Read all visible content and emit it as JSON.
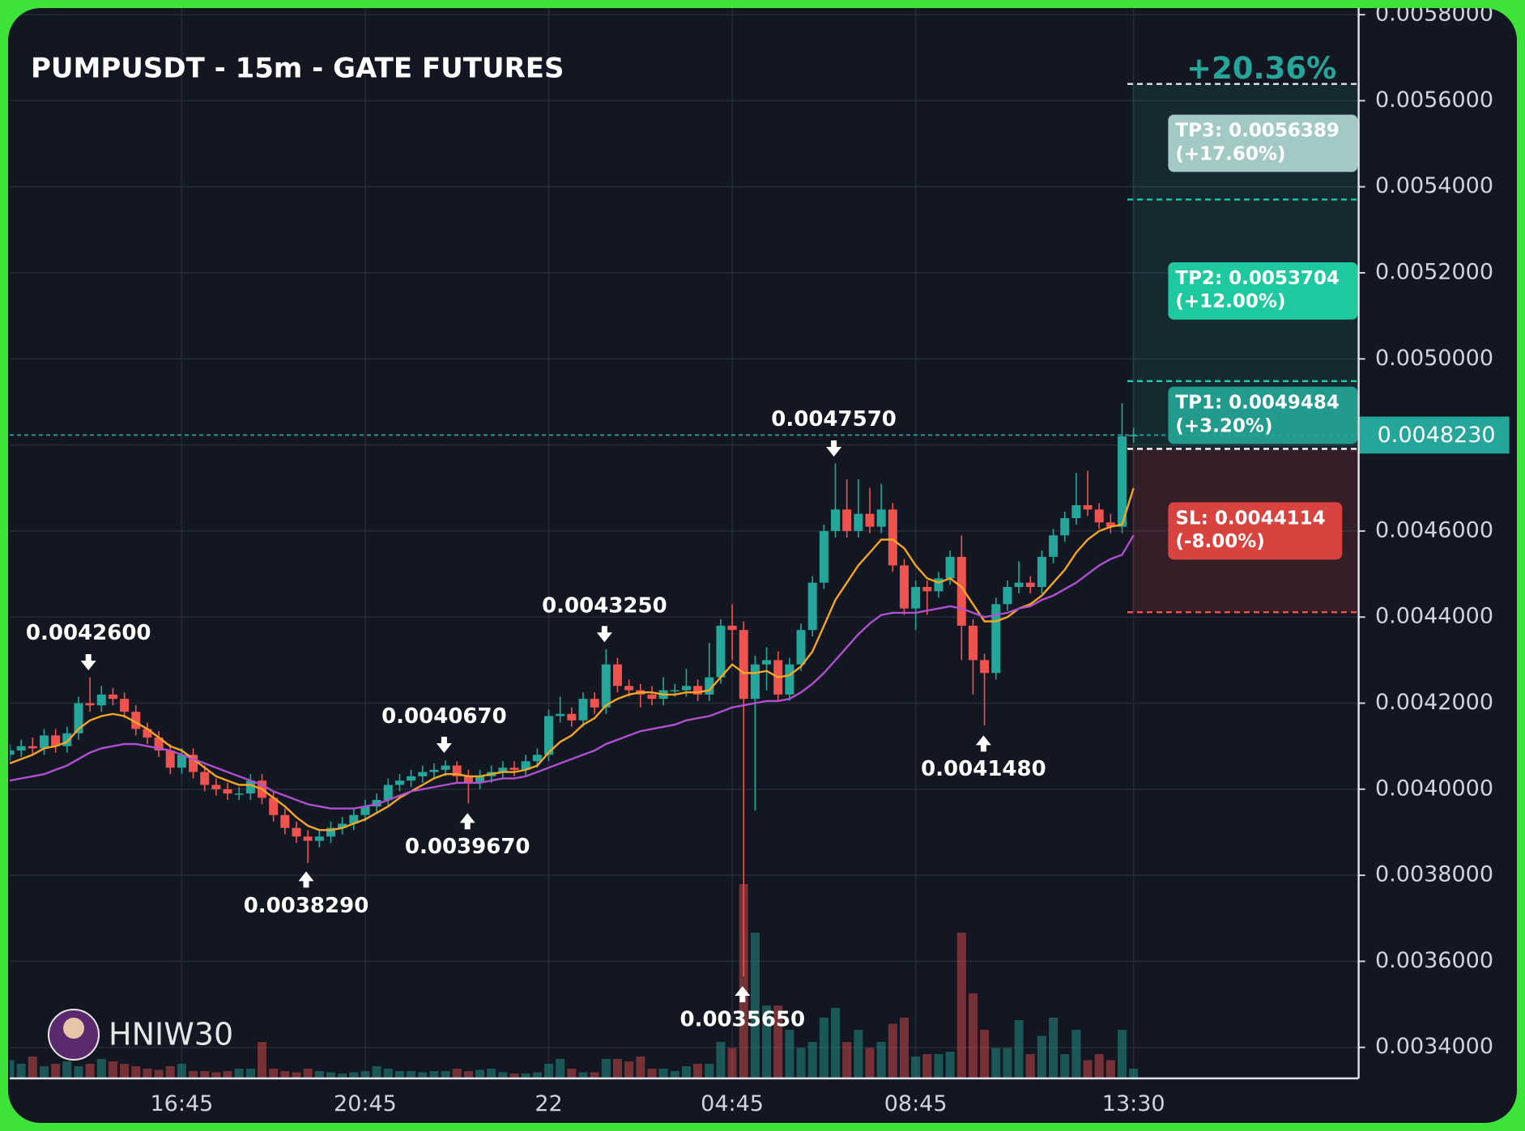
{
  "chart_data": {
    "type": "candlestick",
    "title": "PUMPUSDT - 15m - GATE FUTURES",
    "watermark": "HNIW30",
    "categories": [
      null,
      null,
      null,
      null,
      null,
      null,
      null,
      null,
      null,
      null,
      null,
      null,
      null,
      null,
      null,
      "16:45",
      null,
      null,
      null,
      null,
      null,
      null,
      null,
      null,
      null,
      null,
      null,
      null,
      null,
      null,
      null,
      "20:45",
      null,
      null,
      null,
      null,
      null,
      null,
      null,
      null,
      null,
      null,
      null,
      null,
      null,
      null,
      null,
      "22",
      null,
      null,
      null,
      null,
      null,
      null,
      null,
      null,
      null,
      null,
      null,
      null,
      null,
      null,
      null,
      "04:45",
      null,
      null,
      null,
      null,
      null,
      null,
      null,
      null,
      null,
      null,
      null,
      null,
      null,
      null,
      null,
      "08:45",
      null,
      null,
      null,
      null,
      null,
      null,
      null,
      null,
      null,
      null,
      null,
      null,
      null,
      null,
      null,
      null,
      null,
      null,
      "13:30"
    ],
    "open": [
      0.00408,
      0.00409,
      0.0041,
      0.004095,
      0.004125,
      0.0041,
      0.00413,
      0.0042,
      0.004195,
      0.00422,
      0.00421,
      0.00418,
      0.00414,
      0.00412,
      0.00409,
      0.00405,
      0.00408,
      0.00404,
      0.00401,
      0.004,
      0.00399,
      0.00399,
      0.00402,
      0.00398,
      0.00394,
      0.00391,
      0.00389,
      0.00388,
      0.00389,
      0.00391,
      0.00392,
      0.00394,
      0.00396,
      0.003975,
      0.00401,
      0.00402,
      0.00403,
      0.00404,
      0.004045,
      0.004055,
      0.00403,
      0.004015,
      0.00403,
      0.00404,
      0.00405,
      0.004045,
      0.004065,
      0.00408,
      0.00417,
      0.004175,
      0.00416,
      0.00421,
      0.00419,
      0.00429,
      0.00424,
      0.00423,
      0.00422,
      0.00421,
      0.00423,
      0.00423,
      0.00424,
      0.00422,
      0.00426,
      0.00438,
      0.00437,
      0.00421,
      0.00429,
      0.0043,
      0.00422,
      0.00429,
      0.00437,
      0.00448,
      0.0046,
      0.00465,
      0.0046,
      0.00464,
      0.00461,
      0.00465,
      0.00452,
      0.00442,
      0.00447,
      0.00446,
      0.00449,
      0.00454,
      0.00438,
      0.0043,
      0.00427,
      0.00443,
      0.00447,
      0.00448,
      0.00447,
      0.00454,
      0.00459,
      0.00463,
      0.00466,
      0.00465,
      0.00462,
      0.00461,
      0.00482
    ],
    "high": [
      0.004105,
      0.004115,
      0.00412,
      0.00414,
      0.00414,
      0.004145,
      0.004215,
      0.00426,
      0.00424,
      0.004235,
      0.004225,
      0.004195,
      0.004155,
      0.004135,
      0.004105,
      0.004095,
      0.004095,
      0.004055,
      0.004025,
      0.004015,
      0.004005,
      0.004035,
      0.004035,
      0.003995,
      0.003955,
      0.003925,
      0.003905,
      0.003905,
      0.003925,
      0.003935,
      0.003955,
      0.003975,
      0.00399,
      0.004025,
      0.004035,
      0.004045,
      0.004055,
      0.00406,
      0.004067,
      0.004065,
      0.004045,
      0.004045,
      0.004055,
      0.004065,
      0.004065,
      0.00408,
      0.004095,
      0.004185,
      0.004215,
      0.00419,
      0.004225,
      0.004225,
      0.004325,
      0.004305,
      0.004255,
      0.004245,
      0.00424,
      0.00426,
      0.004245,
      0.00428,
      0.004255,
      0.00434,
      0.004395,
      0.00443,
      0.00439,
      0.00431,
      0.00433,
      0.00432,
      0.004305,
      0.004385,
      0.004495,
      0.004615,
      0.004757,
      0.00472,
      0.00472,
      0.0047,
      0.00471,
      0.004665,
      0.004535,
      0.004485,
      0.004485,
      0.004505,
      0.004555,
      0.00459,
      0.004395,
      0.004315,
      0.004445,
      0.004485,
      0.00453,
      0.004495,
      0.004555,
      0.004605,
      0.004645,
      0.004735,
      0.00474,
      0.004665,
      0.00464,
      0.004897,
      0.00484
    ],
    "low": [
      0.004065,
      0.004075,
      0.00408,
      0.00408,
      0.004085,
      0.004085,
      0.004115,
      0.00418,
      0.00418,
      0.004195,
      0.004165,
      0.004125,
      0.004105,
      0.004075,
      0.004035,
      0.004035,
      0.004025,
      0.003995,
      0.003985,
      0.003975,
      0.003975,
      0.003975,
      0.003965,
      0.003925,
      0.003895,
      0.003875,
      0.003829,
      0.003865,
      0.003875,
      0.003895,
      0.003905,
      0.003925,
      0.003945,
      0.00396,
      0.003995,
      0.004005,
      0.004015,
      0.004025,
      0.00403,
      0.004015,
      0.003967,
      0.004,
      0.004015,
      0.004025,
      0.00403,
      0.00403,
      0.00405,
      0.004065,
      0.004155,
      0.004145,
      0.004145,
      0.004175,
      0.004175,
      0.004225,
      0.004215,
      0.00419,
      0.004195,
      0.004195,
      0.004215,
      0.004215,
      0.004205,
      0.004205,
      0.004245,
      0.0043,
      0.003565,
      0.00395,
      0.00423,
      0.004205,
      0.004205,
      0.004275,
      0.004355,
      0.004465,
      0.004585,
      0.004585,
      0.004585,
      0.004595,
      0.004595,
      0.004505,
      0.004405,
      0.00437,
      0.004405,
      0.004445,
      0.004475,
      0.0043,
      0.00422,
      0.004148,
      0.004255,
      0.004415,
      0.004455,
      0.004455,
      0.004455,
      0.004525,
      0.004575,
      0.004615,
      0.004635,
      0.004605,
      0.004595,
      0.004595,
      0.004805
    ],
    "close": [
      0.00409,
      0.0041,
      0.004095,
      0.004125,
      0.0041,
      0.00413,
      0.0042,
      0.004195,
      0.00422,
      0.00421,
      0.00418,
      0.00414,
      0.00412,
      0.00409,
      0.00405,
      0.00408,
      0.00404,
      0.00401,
      0.004,
      0.00399,
      0.00399,
      0.00402,
      0.00398,
      0.00394,
      0.00391,
      0.00389,
      0.00388,
      0.00389,
      0.00391,
      0.00392,
      0.00394,
      0.00396,
      0.003975,
      0.00401,
      0.00402,
      0.00403,
      0.00404,
      0.004045,
      0.004055,
      0.00403,
      0.004015,
      0.00403,
      0.00404,
      0.00405,
      0.004045,
      0.004065,
      0.00408,
      0.00417,
      0.004175,
      0.00416,
      0.00421,
      0.00419,
      0.00429,
      0.00424,
      0.00423,
      0.00422,
      0.00421,
      0.00423,
      0.00423,
      0.00424,
      0.00422,
      0.00426,
      0.00438,
      0.00437,
      0.00421,
      0.00429,
      0.0043,
      0.00422,
      0.00429,
      0.00437,
      0.00448,
      0.0046,
      0.00465,
      0.0046,
      0.00464,
      0.00461,
      0.00465,
      0.00452,
      0.00442,
      0.00447,
      0.00446,
      0.00449,
      0.00454,
      0.00438,
      0.0043,
      0.00427,
      0.00443,
      0.00447,
      0.00448,
      0.00447,
      0.00454,
      0.00459,
      0.00463,
      0.00466,
      0.00465,
      0.00462,
      0.00461,
      0.00482,
      0.004823
    ],
    "volume": [
      15,
      12,
      18,
      10,
      12,
      14,
      10,
      12,
      16,
      14,
      12,
      10,
      8,
      7,
      10,
      12,
      6,
      6,
      5,
      6,
      8,
      8,
      30,
      8,
      6,
      5,
      8,
      6,
      5,
      4,
      5,
      6,
      10,
      8,
      6,
      6,
      5,
      6,
      6,
      8,
      6,
      7,
      8,
      5,
      4,
      4,
      5,
      12,
      16,
      8,
      5,
      5,
      16,
      16,
      14,
      18,
      8,
      8,
      6,
      10,
      12,
      12,
      30,
      25,
      160,
      120,
      60,
      60,
      40,
      25,
      30,
      50,
      58,
      30,
      40,
      25,
      30,
      45,
      50,
      18,
      20,
      20,
      22,
      120,
      70,
      40,
      25,
      25,
      48,
      20,
      35,
      50,
      20,
      40,
      15,
      20,
      15,
      40,
      8
    ],
    "up_color": "#26a69a",
    "down_color": "#ef5350",
    "lines": [
      {
        "color": "#f5a623",
        "values": [
          0.00406,
          0.00407,
          0.00408,
          0.004095,
          0.0041,
          0.00411,
          0.00414,
          0.00416,
          0.00417,
          0.004175,
          0.00417,
          0.004155,
          0.00414,
          0.00412,
          0.0041,
          0.00409,
          0.00407,
          0.00405,
          0.00403,
          0.00402,
          0.00401,
          0.00401,
          0.004,
          0.00398,
          0.00396,
          0.003935,
          0.003915,
          0.003905,
          0.003905,
          0.00391,
          0.00392,
          0.00393,
          0.003945,
          0.00396,
          0.00398,
          0.003995,
          0.00401,
          0.004025,
          0.004035,
          0.004035,
          0.00403,
          0.00403,
          0.004035,
          0.00404,
          0.00404,
          0.004045,
          0.004055,
          0.004085,
          0.00411,
          0.004125,
          0.00415,
          0.004165,
          0.004195,
          0.00421,
          0.00422,
          0.004225,
          0.004225,
          0.00422,
          0.00422,
          0.004225,
          0.004225,
          0.00423,
          0.00426,
          0.00429,
          0.00427,
          0.00427,
          0.004275,
          0.00426,
          0.004265,
          0.004285,
          0.00432,
          0.00438,
          0.00444,
          0.00448,
          0.00452,
          0.00455,
          0.00458,
          0.00458,
          0.00456,
          0.00452,
          0.00449,
          0.00448,
          0.00449,
          0.00447,
          0.00443,
          0.00439,
          0.00439,
          0.0044,
          0.00442,
          0.00443,
          0.00445,
          0.00448,
          0.00451,
          0.00455,
          0.00458,
          0.0046,
          0.00461,
          0.004615,
          0.0047
        ]
      },
      {
        "color": "#b04fd0",
        "values": [
          0.00402,
          0.004025,
          0.00403,
          0.004035,
          0.004045,
          0.004055,
          0.00407,
          0.004085,
          0.004095,
          0.0041,
          0.004105,
          0.004105,
          0.0041,
          0.004095,
          0.00409,
          0.00408,
          0.00407,
          0.00406,
          0.00405,
          0.00404,
          0.00403,
          0.00402,
          0.00401,
          0.003995,
          0.003985,
          0.003975,
          0.003965,
          0.00396,
          0.003955,
          0.003955,
          0.003955,
          0.00396,
          0.003965,
          0.003975,
          0.003985,
          0.003995,
          0.004,
          0.004005,
          0.00401,
          0.004015,
          0.004015,
          0.004015,
          0.00402,
          0.004025,
          0.004025,
          0.00403,
          0.00404,
          0.00405,
          0.00406,
          0.00407,
          0.00408,
          0.00409,
          0.004105,
          0.004115,
          0.004125,
          0.004135,
          0.00414,
          0.004145,
          0.00415,
          0.00416,
          0.004165,
          0.00417,
          0.00418,
          0.00419,
          0.004195,
          0.0042,
          0.004205,
          0.004205,
          0.00421,
          0.004225,
          0.004245,
          0.00427,
          0.0043,
          0.00433,
          0.00436,
          0.004385,
          0.004405,
          0.00441,
          0.00441,
          0.00441,
          0.004415,
          0.00442,
          0.004425,
          0.00442,
          0.00441,
          0.0044,
          0.004405,
          0.00441,
          0.00442,
          0.004425,
          0.00444,
          0.00445,
          0.004465,
          0.00448,
          0.0045,
          0.00452,
          0.004535,
          0.004545,
          0.00459
        ]
      }
    ],
    "ylim": [
      0.003328,
      0.005816
    ],
    "yticks": [
      {
        "value": 0.0034,
        "label": "0.0034000"
      },
      {
        "value": 0.0036,
        "label": "0.0036000"
      },
      {
        "value": 0.0038,
        "label": "0.0038000"
      },
      {
        "value": 0.004,
        "label": "0.0040000"
      },
      {
        "value": 0.0042,
        "label": "0.0042000"
      },
      {
        "value": 0.0044,
        "label": "0.0044000"
      },
      {
        "value": 0.0046,
        "label": "0.0046000"
      },
      {
        "value": 0.0048,
        "label": "0.0048000"
      },
      {
        "value": 0.005,
        "label": "0.0050000"
      },
      {
        "value": 0.0052,
        "label": "0.0052000"
      },
      {
        "value": 0.0054,
        "label": "0.0054000"
      },
      {
        "value": 0.0056,
        "label": "0.0056000"
      },
      {
        "value": 0.0058,
        "label": "0.0058000"
      }
    ],
    "grid": true,
    "current_price": {
      "value": 0.004823,
      "label": "0.0048230"
    },
    "entry": 0.004791,
    "target_change": "+20.36%",
    "levels": [
      {
        "label": "TP3: 0.0056389",
        "change": "(+17.60%)",
        "value": 0.0056389,
        "color": "#a3c9c5"
      },
      {
        "label": "TP2: 0.0053704",
        "change": "(+12.00%)",
        "value": 0.0053704,
        "color": "#1ec99f"
      },
      {
        "label": "TP1: 0.0049484",
        "change": "(+3.20%)",
        "value": 0.0049484,
        "color": "#229a8c"
      },
      {
        "label": "SL: 0.0044114",
        "change": "(-8.00%)",
        "value": 0.0044114,
        "color": "#d8433f"
      }
    ],
    "annotations": [
      "0.0042600",
      "0.0040670",
      "0.0043250",
      "0.0047570",
      "0.0038290",
      "0.0039670",
      "0.0035650",
      "0.0041480"
    ]
  }
}
